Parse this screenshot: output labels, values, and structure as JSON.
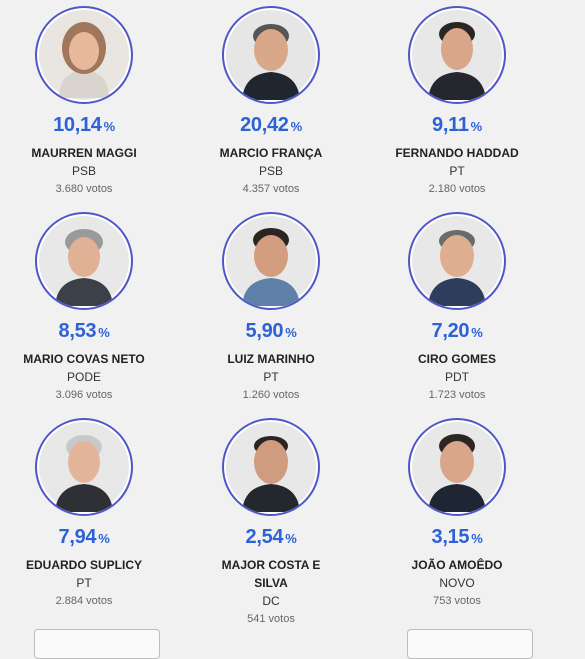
{
  "candidates": [
    {
      "pct": "10,14",
      "sign": "%",
      "name": "MAURREN MAGGI",
      "party": "PSB",
      "votes": "3.680 votos",
      "colors": {
        "bg": "#e9e6e2",
        "hair": "#a0775a",
        "skin": "#e7b89c",
        "shirt": "#d9d4ce"
      }
    },
    {
      "pct": "20,42",
      "sign": "%",
      "name": "MARCIO FRANÇA",
      "party": "PSB",
      "votes": "4.357 votos",
      "colors": {
        "bg": "#e6e6e6",
        "hair": "#555555",
        "skin": "#d9a88a",
        "shirt": "#1f2630"
      }
    },
    {
      "pct": "9,11",
      "sign": "%",
      "name": "FERNANDO HADDAD",
      "party": "PT",
      "votes": "2.180 votos",
      "colors": {
        "bg": "#e8e8e8",
        "hair": "#2a2523",
        "skin": "#d9a68a",
        "shirt": "#26262e"
      }
    },
    {
      "pct": "8,53",
      "sign": "%",
      "name": "MARIO COVAS NETO",
      "party": "PODE",
      "votes": "3.096 votos",
      "colors": {
        "bg": "#e8e8e8",
        "hair": "#9a9a9a",
        "skin": "#e0b195",
        "shirt": "#3c4049"
      }
    },
    {
      "pct": "5,90",
      "sign": "%",
      "name": "LUIZ MARINHO",
      "party": "PT",
      "votes": "1.260 votos",
      "colors": {
        "bg": "#e8e8e8",
        "hair": "#2b2522",
        "skin": "#d29e7f",
        "shirt": "#5f80a8"
      }
    },
    {
      "pct": "7,20",
      "sign": "%",
      "name": "CIRO GOMES",
      "party": "PDT",
      "votes": "1.723 votos",
      "colors": {
        "bg": "#e8e8e8",
        "hair": "#6b6b6b",
        "skin": "#dfad90",
        "shirt": "#2d3d5c"
      }
    },
    {
      "pct": "7,94",
      "sign": "%",
      "name": "EDUARDO SUPLICY",
      "party": "PT",
      "votes": "2.884 votos",
      "colors": {
        "bg": "#e8e8e8",
        "hair": "#c9c9c9",
        "skin": "#e3b69c",
        "shirt": "#2f3036"
      }
    },
    {
      "pct": "2,54",
      "sign": "%",
      "name": "MAJOR COSTA E SILVA",
      "party": "DC",
      "votes": "541 votos",
      "colors": {
        "bg": "#e8e8e8",
        "hair": "#2a2522",
        "skin": "#cf9c80",
        "shirt": "#23272e"
      }
    },
    {
      "pct": "3,15",
      "sign": "%",
      "name": "JOÃO AMOÊDO",
      "party": "NOVO",
      "votes": "753 votos",
      "colors": {
        "bg": "#e8e8e8",
        "hair": "#2b2623",
        "skin": "#d9a68a",
        "shirt": "#1f2633"
      }
    }
  ],
  "accent_color": "#2d62d6",
  "ring_color": "#4f57c8"
}
